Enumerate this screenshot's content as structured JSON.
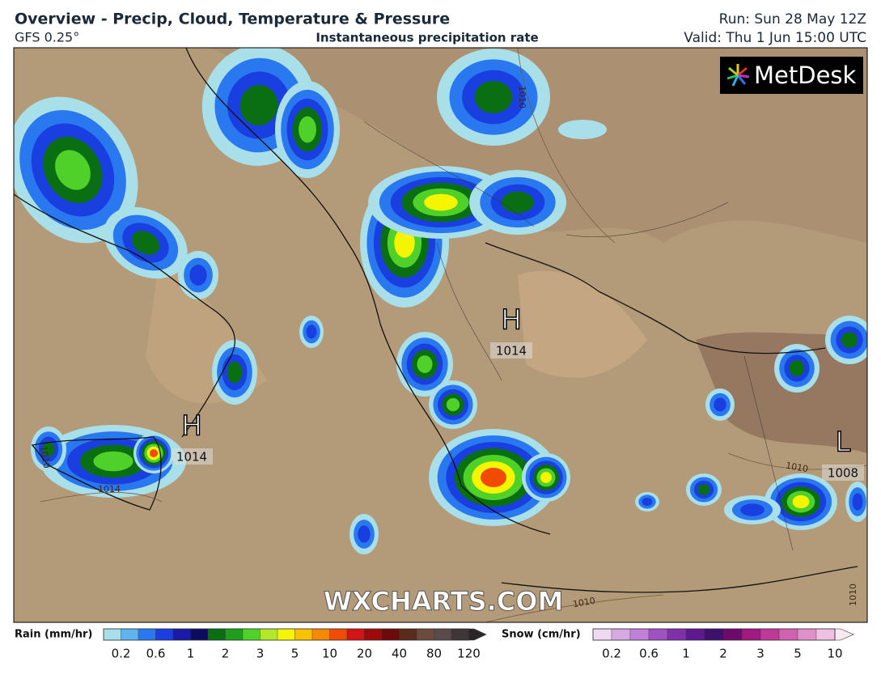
{
  "header": {
    "title": "Overview - Precip, Cloud, Temperature & Pressure",
    "model": "GFS 0.25°",
    "subtitle": "Instantaneous precipitation rate",
    "run": "Run: Sun 28 May 12Z",
    "valid": "Valid: Thu 1 Jun 15:00 UTC"
  },
  "logo": "MetDesk",
  "watermark": "WXCHARTS.COM",
  "pressure_centers": [
    {
      "label": "H",
      "value": "1014"
    },
    {
      "label": "H",
      "value": "1014"
    },
    {
      "label": "L",
      "value": "1008"
    }
  ],
  "isobar_labels": [
    "1010",
    "1014",
    "1010",
    "1010",
    "1010",
    "1010"
  ],
  "legend": {
    "rain": {
      "label": "Rain (mm/hr)",
      "ticks": [
        0.2,
        0.6,
        1,
        2,
        3,
        5,
        10,
        20,
        40,
        80,
        120
      ],
      "colors": [
        "#a8dfe8",
        "#5fb4f0",
        "#2a78f0",
        "#1a3fe0",
        "#1a1aa8",
        "#0c0c60",
        "#0a6e12",
        "#1ea01e",
        "#4fd12a",
        "#b3e82a",
        "#f5f500",
        "#f7c200",
        "#f58a00",
        "#f04b00",
        "#d41414",
        "#9c0a0a",
        "#6e0a0a",
        "#5a2a1a",
        "#6e4a3a",
        "#5a4a4a",
        "#3e3638",
        "#2a2628"
      ]
    },
    "snow": {
      "label": "Snow (cm/hr)",
      "ticks": [
        0.2,
        0.6,
        1,
        2,
        3,
        5,
        10
      ],
      "colors": [
        "#f0d8f0",
        "#d8a8e0",
        "#c080d8",
        "#a050c0",
        "#8030a8",
        "#601890",
        "#40106e",
        "#6e0a6e",
        "#a01880",
        "#c03898",
        "#d060b0",
        "#e090c8",
        "#f0c0e0",
        "#f8e8f4"
      ]
    }
  }
}
